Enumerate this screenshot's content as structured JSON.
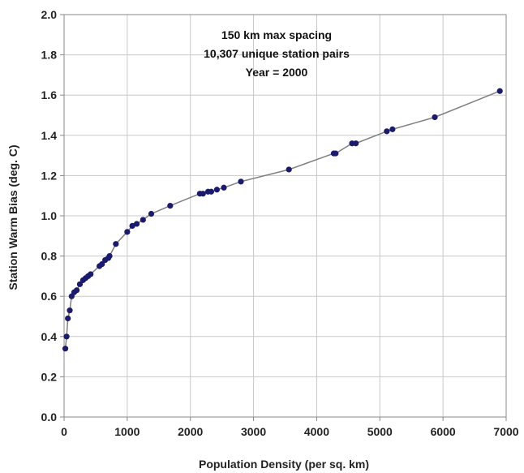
{
  "chart_data": {
    "type": "line",
    "title": "",
    "xlabel": "Population Density (per sq. km)",
    "ylabel": "Station Warm Bias (deg. C)",
    "xlim": [
      0,
      7000
    ],
    "ylim": [
      0.0,
      2.0
    ],
    "x_ticks": [
      "0",
      "1000",
      "2000",
      "3000",
      "4000",
      "5000",
      "6000",
      "7000"
    ],
    "y_ticks": [
      "0.0",
      "0.2",
      "0.4",
      "0.6",
      "0.8",
      "1.0",
      "1.2",
      "1.4",
      "1.6",
      "1.8",
      "2.0"
    ],
    "grid": true,
    "legend": "none",
    "annotations": [
      "150 km max spacing",
      "10,307 unique station pairs",
      "Year = 2000"
    ],
    "colors": {
      "points": "#1a1a6e",
      "line": "#7f7f7f",
      "grid": "#c8c8c8",
      "frame": "#888888"
    },
    "series": [
      {
        "x": [
          20,
          40,
          60,
          90,
          120,
          160,
          200,
          250,
          300,
          340,
          380,
          420,
          560,
          600,
          650,
          700,
          720,
          820,
          1000,
          1080,
          1150,
          1250,
          1380,
          1680,
          2150,
          2200,
          2280,
          2330,
          2420,
          2530,
          2800,
          3560,
          4270,
          4300,
          4560,
          4620,
          5110,
          5200,
          5870,
          6900
        ],
        "y": [
          0.34,
          0.4,
          0.49,
          0.53,
          0.6,
          0.62,
          0.63,
          0.66,
          0.68,
          0.69,
          0.7,
          0.71,
          0.75,
          0.76,
          0.78,
          0.79,
          0.8,
          0.86,
          0.92,
          0.95,
          0.96,
          0.98,
          1.01,
          1.05,
          1.11,
          1.11,
          1.12,
          1.12,
          1.13,
          1.14,
          1.17,
          1.23,
          1.31,
          1.31,
          1.36,
          1.36,
          1.42,
          1.43,
          1.49,
          1.62
        ]
      }
    ]
  }
}
